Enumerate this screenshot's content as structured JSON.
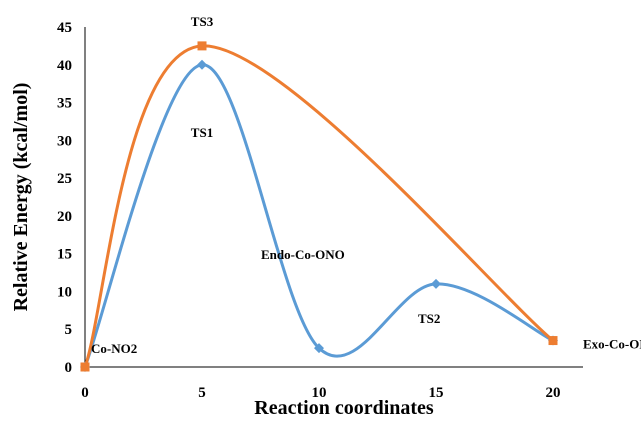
{
  "chart_data": {
    "type": "line",
    "xlabel": "Reaction coordinates",
    "ylabel": "Relative Energy (kcal/mol)",
    "xticks": [
      "0",
      "5",
      "10",
      "15",
      "20"
    ],
    "yticks": [
      "0",
      "5",
      "10",
      "15",
      "20",
      "25",
      "30",
      "35",
      "40",
      "45"
    ],
    "xlim": [
      0,
      20
    ],
    "ylim": [
      0,
      45
    ],
    "grid": false,
    "series": [
      {
        "color": "#5B9BD5",
        "marker": "diamond",
        "smooth": true,
        "points": [
          [
            0,
            0
          ],
          [
            5,
            40
          ],
          [
            10,
            2.5
          ],
          [
            15,
            11
          ],
          [
            20,
            3.5
          ]
        ]
      },
      {
        "color": "#ED7D31",
        "marker": "square",
        "smooth": true,
        "points": [
          [
            0,
            0
          ],
          [
            5,
            42.5
          ],
          [
            20,
            3.5
          ]
        ]
      }
    ],
    "annotations": [
      {
        "text": "TS3",
        "x": 5,
        "y": 42.5
      },
      {
        "text": "TS1",
        "x": 5,
        "y": 40
      },
      {
        "text": "Endo-Co-ONO",
        "x": 10,
        "y": 2.5
      },
      {
        "text": "TS2",
        "x": 15,
        "y": 11
      },
      {
        "text": "Co-NO2",
        "x": 0,
        "y": 0
      },
      {
        "text": "Exo-Co-ONO",
        "x": 20,
        "y": 3.5
      }
    ]
  }
}
